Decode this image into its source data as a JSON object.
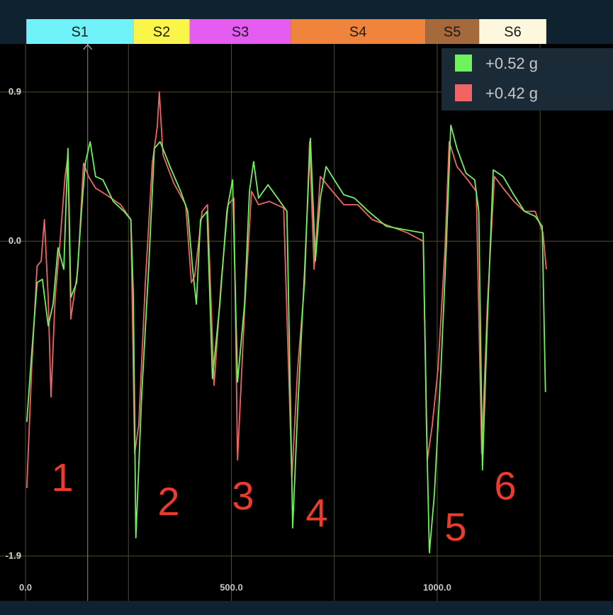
{
  "chart_data": {
    "type": "line",
    "xlim": [
      -62,
      1427
    ],
    "ylim": [
      -2.17,
      1.19
    ],
    "xticks": [
      {
        "value": 0,
        "label": "0.0"
      },
      {
        "value": 500,
        "label": "500.0"
      },
      {
        "value": 1000,
        "label": "1000.0"
      }
    ],
    "x_minor_grid": [
      250,
      750,
      1250
    ],
    "yticks": [
      0.9,
      {
        "value": 0,
        "label": "0.0"
      },
      -1.9
    ],
    "grid": true,
    "cursor_x": 151,
    "segments": [
      {
        "name": "S1",
        "start": 2,
        "end": 262,
        "color": "#6ff3f8"
      },
      {
        "name": "S2",
        "start": 262,
        "end": 399,
        "color": "#fbf54a"
      },
      {
        "name": "S3",
        "start": 399,
        "end": 644,
        "color": "#e45cf0"
      },
      {
        "name": "S4",
        "start": 644,
        "end": 971,
        "color": "#f0843c"
      },
      {
        "name": "S5",
        "start": 971,
        "end": 1102,
        "color": "#a5693c"
      },
      {
        "name": "S6",
        "start": 1102,
        "end": 1265,
        "color": "#fcf7dd"
      }
    ],
    "legend": "top-right",
    "series": [
      {
        "name": "+0.52 g",
        "color": "#6ff25a",
        "x": [
          3,
          15,
          28,
          41,
          55,
          67,
          79,
          93,
          103,
          110,
          124,
          136,
          145,
          157,
          170,
          188,
          213,
          239,
          256,
          262,
          268,
          282,
          299,
          313,
          327,
          351,
          377,
          394,
          406,
          415,
          425,
          441,
          454,
          472,
          489,
          503,
          515,
          532,
          544,
          554,
          566,
          589,
          618,
          635,
          649,
          661,
          678,
          692,
          704,
          716,
          730,
          750,
          773,
          799,
          833,
          876,
          919,
          966,
          974,
          981,
          993,
          1009,
          1022,
          1033,
          1048,
          1070,
          1091,
          1101,
          1110,
          1122,
          1136,
          1160,
          1186,
          1212,
          1238,
          1255,
          1263
        ],
        "values": [
          -1.09,
          -0.68,
          -0.25,
          -0.23,
          -0.51,
          -0.38,
          -0.04,
          -0.17,
          0.56,
          -0.34,
          -0.25,
          0.18,
          0.47,
          0.6,
          0.39,
          0.37,
          0.24,
          0.18,
          0.13,
          -0.34,
          -1.79,
          -0.94,
          -0.17,
          0.56,
          0.6,
          0.45,
          0.3,
          0.18,
          -0.17,
          -0.38,
          0.13,
          0.18,
          -0.83,
          -0.38,
          0.18,
          0.37,
          -0.85,
          -0.38,
          0.3,
          0.48,
          0.26,
          0.34,
          0.24,
          0.18,
          -1.73,
          -1.02,
          -0.17,
          0.62,
          -0.12,
          0.26,
          0.45,
          0.37,
          0.28,
          0.26,
          0.18,
          0.09,
          0.07,
          0.05,
          -1.11,
          -1.88,
          -1.53,
          -0.77,
          -0.04,
          0.7,
          0.56,
          0.41,
          0.37,
          0.18,
          -1.38,
          -0.47,
          0.43,
          0.39,
          0.28,
          0.18,
          0.15,
          0.09,
          -0.91
        ]
      },
      {
        "name": "+0.42 g",
        "color": "#f06464",
        "x": [
          3,
          15,
          28,
          38,
          46,
          55,
          62,
          72,
          84,
          96,
          103,
          110,
          127,
          141,
          153,
          170,
          196,
          231,
          256,
          265,
          275,
          291,
          308,
          320,
          325,
          334,
          360,
          389,
          403,
          411,
          429,
          442,
          458,
          475,
          492,
          506,
          515,
          532,
          549,
          566,
          592,
          627,
          647,
          661,
          678,
          690,
          701,
          716,
          739,
          773,
          807,
          842,
          885,
          928,
          966,
          976,
          988,
          1002,
          1019,
          1029,
          1048,
          1074,
          1095,
          1108,
          1122,
          1139,
          1160,
          1186,
          1212,
          1238,
          1257,
          1265
        ],
        "values": [
          -1.49,
          -0.77,
          -0.15,
          -0.12,
          0.13,
          -0.34,
          -0.94,
          -0.34,
          0.0,
          0.39,
          0.52,
          -0.47,
          -0.17,
          0.47,
          0.39,
          0.32,
          0.28,
          0.22,
          0.13,
          -1.28,
          -1.11,
          -0.25,
          0.47,
          0.69,
          0.9,
          0.52,
          0.35,
          0.22,
          -0.25,
          -0.21,
          0.18,
          0.22,
          -0.87,
          -0.25,
          0.22,
          0.26,
          -1.32,
          -0.42,
          0.3,
          0.22,
          0.24,
          0.2,
          -1.43,
          -0.77,
          -0.25,
          0.6,
          -0.17,
          0.39,
          0.32,
          0.22,
          0.22,
          0.13,
          0.09,
          0.05,
          0.0,
          -1.32,
          -1.11,
          -0.77,
          -0.04,
          0.6,
          0.45,
          0.37,
          0.3,
          -1.28,
          -0.38,
          0.39,
          0.32,
          0.24,
          0.18,
          0.18,
          0.05,
          -0.17
        ]
      }
    ],
    "annotations": [
      "1",
      "2",
      "3",
      "4",
      "5",
      "6"
    ]
  }
}
